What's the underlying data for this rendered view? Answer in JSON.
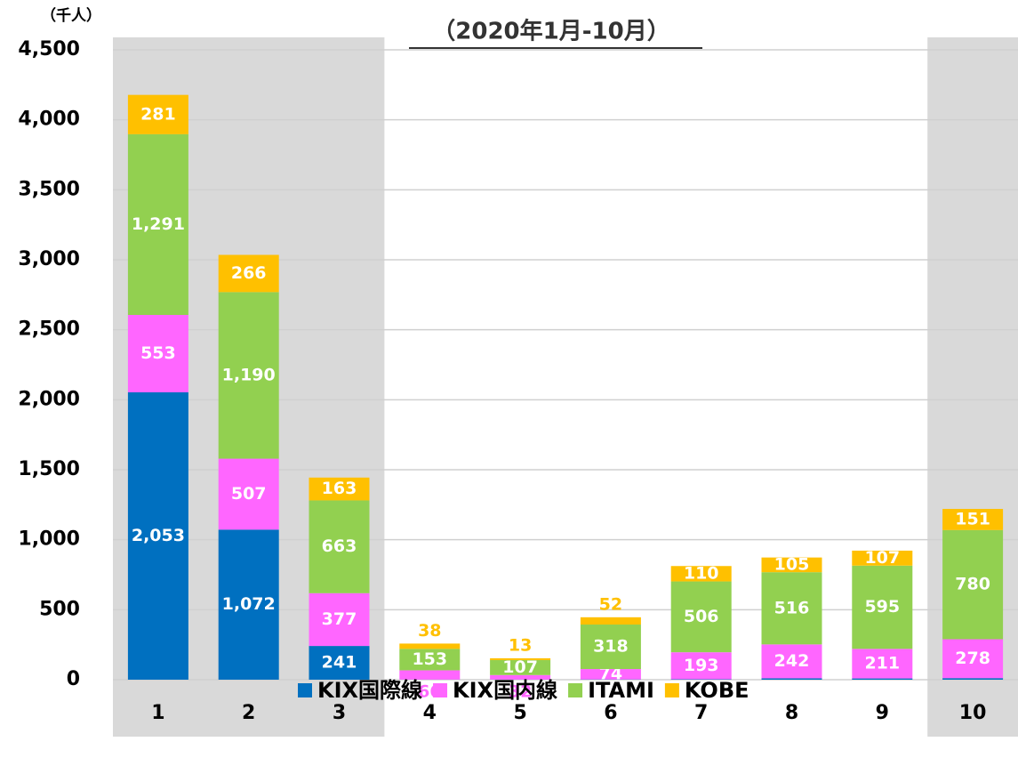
{
  "chart_data": {
    "type": "stacked_bar",
    "title": "（2020年1月-10月）",
    "y_unit_label": "（千人）",
    "categories": [
      "1",
      "2",
      "3",
      "4",
      "5",
      "6",
      "7",
      "8",
      "9",
      "10"
    ],
    "series": [
      {
        "name": "KIX国際線",
        "color": "#0070c0",
        "values": [
          2053,
          1072,
          241,
          1,
          1,
          2,
          3,
          10,
          9,
          11
        ],
        "value_labels": [
          "2,053",
          "1,072",
          "241",
          null,
          null,
          null,
          null,
          null,
          null,
          null
        ]
      },
      {
        "name": "KIX国内線",
        "color": "#ff66ff",
        "values": [
          553,
          507,
          377,
          66,
          32,
          74,
          193,
          242,
          211,
          278
        ],
        "value_labels": [
          "553",
          "507",
          "377",
          "66",
          "32",
          "74",
          "193",
          "242",
          "211",
          "278"
        ]
      },
      {
        "name": "ITAMI",
        "color": "#92d050",
        "values": [
          1291,
          1190,
          663,
          153,
          107,
          318,
          506,
          516,
          595,
          780
        ],
        "value_labels": [
          "1,291",
          "1,190",
          "663",
          "153",
          "107",
          "318",
          "506",
          "516",
          "595",
          "780"
        ]
      },
      {
        "name": "KOBE",
        "color": "#ffc000",
        "values": [
          281,
          266,
          163,
          38,
          13,
          52,
          110,
          105,
          107,
          151
        ],
        "value_labels": [
          "281",
          "266",
          "163",
          "38",
          "13",
          "52",
          "110",
          "105",
          "107",
          "151"
        ]
      }
    ],
    "ylim": [
      0,
      4500
    ],
    "yticks": [
      0,
      500,
      {
        "value": 1000,
        "label": "1,000"
      },
      {
        "value": 1500,
        "label": "1,500"
      },
      {
        "value": 2000,
        "label": "2,000"
      },
      {
        "value": 2500,
        "label": "2,500"
      },
      {
        "value": 3000,
        "label": "3,000"
      },
      {
        "value": 3500,
        "label": "3,500"
      },
      {
        "value": 4000,
        "label": "4,000"
      },
      {
        "value": 4500,
        "label": "4,500"
      }
    ],
    "grid": true,
    "legend": "bottom"
  }
}
